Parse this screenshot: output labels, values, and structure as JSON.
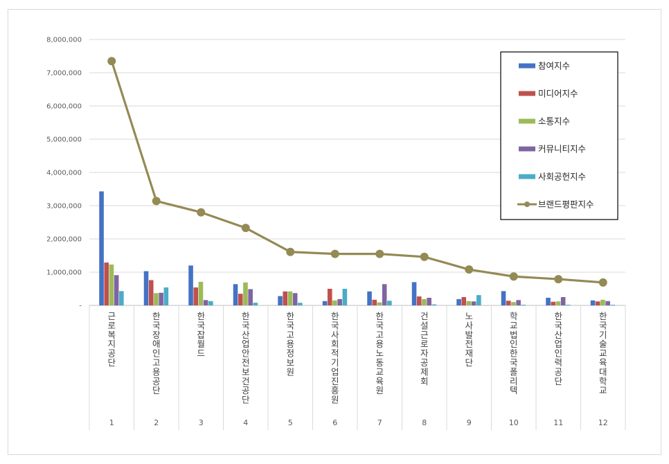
{
  "chart_data": {
    "type": "bar",
    "categories": [
      "1",
      "2",
      "3",
      "4",
      "5",
      "6",
      "7",
      "8",
      "9",
      "10",
      "11",
      "12"
    ],
    "category_names": [
      "근로복지공단",
      "한국장애인고용공단",
      "한국잡월드",
      "한국산업안전보건공단",
      "한국고용정보원",
      "한국사회적기업진흥원",
      "한국고용노동교육원",
      "건설근로자공제회",
      "노사발전재단",
      "학교법인한국폴리텍",
      "한국산업인력공단",
      "한국기술교육대학교"
    ],
    "series": [
      {
        "name": "참여지수",
        "color": "#4472c4",
        "values": [
          3430000,
          1030000,
          1200000,
          640000,
          280000,
          130000,
          420000,
          700000,
          190000,
          430000,
          230000,
          150000
        ]
      },
      {
        "name": "미디어지수",
        "color": "#c0504d",
        "values": [
          1290000,
          760000,
          540000,
          350000,
          420000,
          500000,
          170000,
          270000,
          250000,
          140000,
          110000,
          120000
        ]
      },
      {
        "name": "소통지수",
        "color": "#9bbb59",
        "values": [
          1230000,
          370000,
          710000,
          690000,
          420000,
          150000,
          90000,
          190000,
          130000,
          100000,
          120000,
          170000
        ]
      },
      {
        "name": "커뮤니티지수",
        "color": "#8064a2",
        "values": [
          910000,
          380000,
          160000,
          490000,
          370000,
          190000,
          640000,
          230000,
          120000,
          160000,
          250000,
          130000
        ]
      },
      {
        "name": "사회공헌지수",
        "color": "#4bacc6",
        "values": [
          430000,
          540000,
          130000,
          80000,
          80000,
          500000,
          140000,
          30000,
          310000,
          20000,
          20000,
          20000
        ]
      }
    ],
    "line_series": {
      "name": "브랜드평판지수",
      "color": "#948a54",
      "values": [
        7350000,
        3140000,
        2800000,
        2330000,
        1610000,
        1550000,
        1550000,
        1460000,
        1080000,
        870000,
        790000,
        690000
      ]
    },
    "yticks": [
      "8,000,000",
      "7,000,000",
      "6,000,000",
      "5,000,000",
      "4,000,000",
      "3,000,000",
      "2,000,000",
      "1,000,000",
      "-"
    ],
    "ylim": [
      0,
      8000000
    ],
    "grid": true,
    "legend_position": "top-right"
  }
}
